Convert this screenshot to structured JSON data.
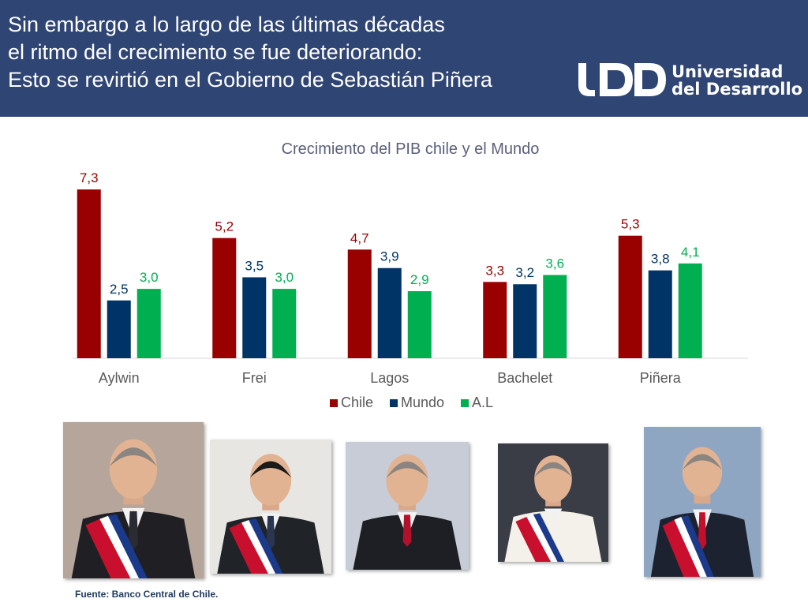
{
  "header": {
    "title_lines": [
      "Sin embargo a lo largo de las últimas décadas",
      "el ritmo del crecimiento se fue deteriorando:",
      "Esto se revirtió en el Gobierno de Sebastián Piñera"
    ],
    "logo_line1": "Universidad",
    "logo_line2": "del Desarrollo"
  },
  "chart_data": {
    "type": "bar",
    "title": "Crecimiento del PIB chile y el Mundo",
    "categories": [
      "Aylwin",
      "Frei",
      "Lagos",
      "Bachelet",
      "Piñera"
    ],
    "series": [
      {
        "name": "Chile",
        "values": [
          7.3,
          5.2,
          4.7,
          3.3,
          5.3
        ],
        "labels": [
          "7,3",
          "5,2",
          "4,7",
          "3,3",
          "5,3"
        ],
        "color": "#990000"
      },
      {
        "name": "Mundo",
        "values": [
          2.5,
          3.5,
          3.9,
          3.2,
          3.8
        ],
        "labels": [
          "2,5",
          "3,5",
          "3,9",
          "3,2",
          "3,8"
        ],
        "color": "#003366"
      },
      {
        "name": "A.L",
        "values": [
          3.0,
          3.0,
          2.9,
          3.6,
          4.1
        ],
        "labels": [
          "3,0",
          "3,0",
          "2,9",
          "3,6",
          "4,1"
        ],
        "color": "#00b050"
      }
    ],
    "ylim": [
      0,
      8
    ],
    "grid": false,
    "legend_position": "bottom"
  },
  "colors": {
    "header_bg": "#2f4574",
    "title_color": "#5a5f7a",
    "axis_label_color": "#595959"
  },
  "photos": [
    {
      "name": "aylwin-photo",
      "suit": "#1f1f24",
      "tie": "#2b2b33",
      "sash": true,
      "bg": "#b5a59a"
    },
    {
      "name": "frei-photo",
      "suit": "#202428",
      "tie": "#2a3550",
      "sash": true,
      "bg": "#e8e6e2"
    },
    {
      "name": "lagos-photo",
      "suit": "#1d1f24",
      "tie": "#b3112b",
      "sash": false,
      "bg": "#c7ccd6"
    },
    {
      "name": "bachelet-photo",
      "suit": "#f4f1ea",
      "tie": "#f4f1ea",
      "sash": true,
      "bg": "#3a3d45"
    },
    {
      "name": "pinera-photo",
      "suit": "#1c2230",
      "tie": "#c0102a",
      "sash": true,
      "bg": "#8fa6c2"
    }
  ],
  "source": "Fuente: Banco Central de Chile."
}
